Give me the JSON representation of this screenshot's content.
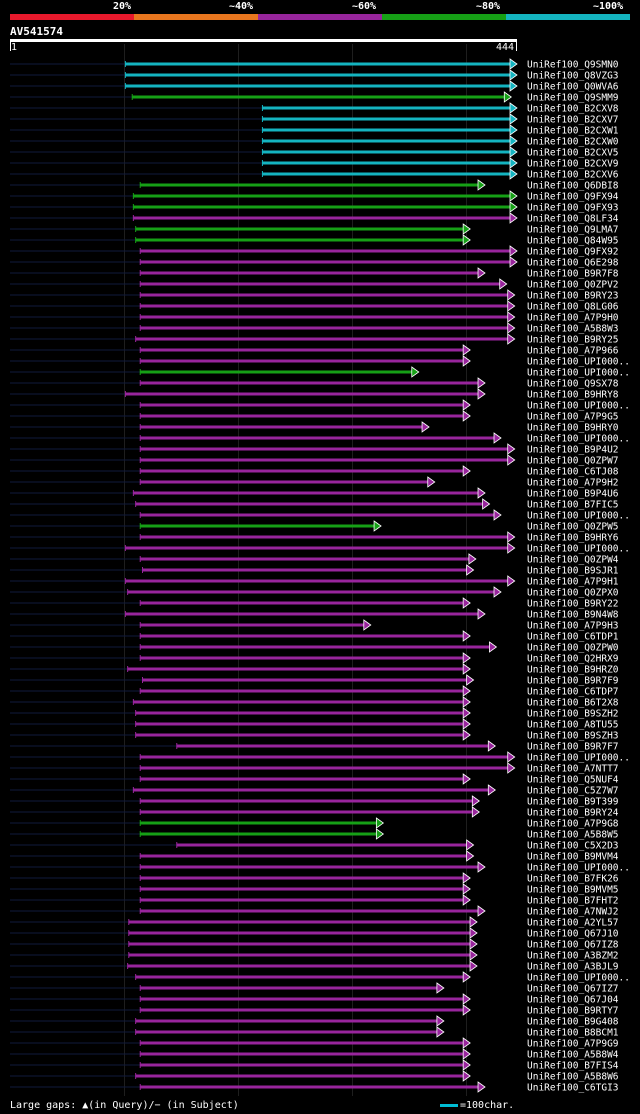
{
  "legend": {
    "labels": [
      "20%",
      "~40%",
      "~60%",
      "~80%",
      "~100%"
    ],
    "colors": [
      "#e8192c",
      "#e8761e",
      "#98259c",
      "#16a016",
      "#14b4c0"
    ]
  },
  "query": {
    "id": "AV541574",
    "start": "1",
    "end": "444",
    "length": 444
  },
  "footer": {
    "text": "Large gaps: ▲(in Query)/− (in Subject)",
    "scale_text": "=100char."
  },
  "colors": {
    "cyan": "#14b4c0",
    "green": "#16a016",
    "purple": "#98259c",
    "dark": "#101a3c"
  },
  "hits": [
    {
      "label": "UniRef100_Q9SMN0",
      "color": "cyan",
      "start": 102,
      "end": 444
    },
    {
      "label": "UniRef100_Q8VZG3",
      "color": "cyan",
      "start": 102,
      "end": 444
    },
    {
      "label": "UniRef100_Q0WVA6",
      "color": "cyan",
      "start": 102,
      "end": 444
    },
    {
      "label": "UniRef100_Q9SMM9",
      "color": "green",
      "start": 108,
      "end": 439
    },
    {
      "label": "UniRef100_B2CXV8",
      "color": "cyan",
      "start": 222,
      "end": 444
    },
    {
      "label": "UniRef100_B2CXV7",
      "color": "cyan",
      "start": 222,
      "end": 444
    },
    {
      "label": "UniRef100_B2CXW1",
      "color": "cyan",
      "start": 222,
      "end": 444
    },
    {
      "label": "UniRef100_B2CXW0",
      "color": "cyan",
      "start": 222,
      "end": 444
    },
    {
      "label": "UniRef100_B2CXV5",
      "color": "cyan",
      "start": 222,
      "end": 444
    },
    {
      "label": "UniRef100_B2CXV9",
      "color": "cyan",
      "start": 222,
      "end": 444
    },
    {
      "label": "UniRef100_B2CXV6",
      "color": "cyan",
      "start": 222,
      "end": 444
    },
    {
      "label": "UniRef100_Q6DBI8",
      "color": "green",
      "start": 115,
      "end": 416
    },
    {
      "label": "UniRef100_Q9FX94",
      "color": "green",
      "start": 109,
      "end": 444
    },
    {
      "label": "UniRef100_Q9FX93",
      "color": "green",
      "start": 109,
      "end": 444
    },
    {
      "label": "UniRef100_Q8LF34",
      "color": "purple",
      "start": 109,
      "end": 444
    },
    {
      "label": "UniRef100_Q9LMA7",
      "color": "green",
      "start": 111,
      "end": 403
    },
    {
      "label": "UniRef100_Q84W95",
      "color": "green",
      "start": 111,
      "end": 403
    },
    {
      "label": "UniRef100_Q9FX92",
      "color": "purple",
      "start": 115,
      "end": 444
    },
    {
      "label": "UniRef100_Q6E298",
      "color": "purple",
      "start": 115,
      "end": 444
    },
    {
      "label": "UniRef100_B9R7F8",
      "color": "purple",
      "start": 115,
      "end": 416
    },
    {
      "label": "UniRef100_Q0ZPV2",
      "color": "purple",
      "start": 115,
      "end": 435
    },
    {
      "label": "UniRef100_B9RY23",
      "color": "purple",
      "start": 115,
      "end": 442
    },
    {
      "label": "UniRef100_Q8LG06",
      "color": "purple",
      "start": 115,
      "end": 442
    },
    {
      "label": "UniRef100_A7P9H0",
      "color": "purple",
      "start": 115,
      "end": 442
    },
    {
      "label": "UniRef100_A5B8W3",
      "color": "purple",
      "start": 115,
      "end": 442
    },
    {
      "label": "UniRef100_B9RY25",
      "color": "purple",
      "start": 111,
      "end": 442
    },
    {
      "label": "UniRef100_A7P966",
      "color": "purple",
      "start": 115,
      "end": 403
    },
    {
      "label": "UniRef100_UPI000..",
      "color": "purple",
      "start": 115,
      "end": 403
    },
    {
      "label": "UniRef100_UPI000..",
      "color": "green",
      "start": 115,
      "end": 358
    },
    {
      "label": "UniRef100_Q9SX78",
      "color": "purple",
      "start": 115,
      "end": 416
    },
    {
      "label": "UniRef100_B9HRY8",
      "color": "purple",
      "start": 102,
      "end": 416
    },
    {
      "label": "UniRef100_UPI000..",
      "color": "purple",
      "start": 115,
      "end": 403
    },
    {
      "label": "UniRef100_A7P9G5",
      "color": "purple",
      "start": 115,
      "end": 403
    },
    {
      "label": "UniRef100_B9HRY0",
      "color": "purple",
      "start": 115,
      "end": 367
    },
    {
      "label": "UniRef100_UPI000..",
      "color": "purple",
      "start": 115,
      "end": 430
    },
    {
      "label": "UniRef100_B9P4U2",
      "color": "purple",
      "start": 115,
      "end": 442
    },
    {
      "label": "UniRef100_Q0ZPW7",
      "color": "purple",
      "start": 115,
      "end": 442
    },
    {
      "label": "UniRef100_C6TJ08",
      "color": "purple",
      "start": 115,
      "end": 403
    },
    {
      "label": "UniRef100_A7P9H2",
      "color": "purple",
      "start": 115,
      "end": 372
    },
    {
      "label": "UniRef100_B9P4U6",
      "color": "purple",
      "start": 109,
      "end": 416
    },
    {
      "label": "UniRef100_B7FIC5",
      "color": "purple",
      "start": 111,
      "end": 420
    },
    {
      "label": "UniRef100_UPI000..",
      "color": "purple",
      "start": 115,
      "end": 430
    },
    {
      "label": "UniRef100_Q0ZPW5",
      "color": "green",
      "start": 115,
      "end": 325
    },
    {
      "label": "UniRef100_B9HRY6",
      "color": "purple",
      "start": 115,
      "end": 442
    },
    {
      "label": "UniRef100_UPI000..",
      "color": "purple",
      "start": 102,
      "end": 442
    },
    {
      "label": "UniRef100_Q0ZPW4",
      "color": "purple",
      "start": 115,
      "end": 408
    },
    {
      "label": "UniRef100_B9SJR1",
      "color": "purple",
      "start": 117,
      "end": 406
    },
    {
      "label": "UniRef100_A7P9H1",
      "color": "purple",
      "start": 102,
      "end": 442
    },
    {
      "label": "UniRef100_Q0ZPX0",
      "color": "purple",
      "start": 104,
      "end": 430
    },
    {
      "label": "UniRef100_B9RY22",
      "color": "purple",
      "start": 115,
      "end": 403
    },
    {
      "label": "UniRef100_B9N4W8",
      "color": "purple",
      "start": 102,
      "end": 416
    },
    {
      "label": "UniRef100_A7P9H3",
      "color": "purple",
      "start": 115,
      "end": 316
    },
    {
      "label": "UniRef100_C6TDP1",
      "color": "purple",
      "start": 115,
      "end": 403
    },
    {
      "label": "UniRef100_Q0ZPW0",
      "color": "purple",
      "start": 115,
      "end": 426
    },
    {
      "label": "UniRef100_Q2HRX9",
      "color": "purple",
      "start": 115,
      "end": 403
    },
    {
      "label": "UniRef100_B9HRZ0",
      "color": "purple",
      "start": 104,
      "end": 403
    },
    {
      "label": "UniRef100_B9R7F9",
      "color": "purple",
      "start": 117,
      "end": 406
    },
    {
      "label": "UniRef100_C6TDP7",
      "color": "purple",
      "start": 115,
      "end": 403
    },
    {
      "label": "UniRef100_B6T2X8",
      "color": "purple",
      "start": 109,
      "end": 403
    },
    {
      "label": "UniRef100_B9SZH2",
      "color": "purple",
      "start": 111,
      "end": 403
    },
    {
      "label": "UniRef100_A8TU55",
      "color": "purple",
      "start": 111,
      "end": 403
    },
    {
      "label": "UniRef100_B9SZH3",
      "color": "purple",
      "start": 111,
      "end": 403
    },
    {
      "label": "UniRef100_B9R7F7",
      "color": "purple",
      "start": 147,
      "end": 425
    },
    {
      "label": "UniRef100_UPI000..",
      "color": "purple",
      "start": 115,
      "end": 442
    },
    {
      "label": "UniRef100_A7NTT7",
      "color": "purple",
      "start": 115,
      "end": 442
    },
    {
      "label": "UniRef100_Q5NUF4",
      "color": "purple",
      "start": 115,
      "end": 403
    },
    {
      "label": "UniRef100_C5Z7W7",
      "color": "purple",
      "start": 109,
      "end": 425
    },
    {
      "label": "UniRef100_B9T399",
      "color": "purple",
      "start": 115,
      "end": 411
    },
    {
      "label": "UniRef100_B9RY24",
      "color": "purple",
      "start": 115,
      "end": 411
    },
    {
      "label": "UniRef100_A7P9G8",
      "color": "green",
      "start": 115,
      "end": 327
    },
    {
      "label": "UniRef100_A5B8W5",
      "color": "green",
      "start": 115,
      "end": 327
    },
    {
      "label": "UniRef100_C5X2D3",
      "color": "purple",
      "start": 147,
      "end": 406
    },
    {
      "label": "UniRef100_B9MVM4",
      "color": "purple",
      "start": 115,
      "end": 406
    },
    {
      "label": "UniRef100_UPI000..",
      "color": "purple",
      "start": 115,
      "end": 416
    },
    {
      "label": "UniRef100_B7FK26",
      "color": "purple",
      "start": 115,
      "end": 403
    },
    {
      "label": "UniRef100_B9MVM5",
      "color": "purple",
      "start": 115,
      "end": 403
    },
    {
      "label": "UniRef100_B7FHT2",
      "color": "purple",
      "start": 115,
      "end": 403
    },
    {
      "label": "UniRef100_A7NWJ2",
      "color": "purple",
      "start": 115,
      "end": 416
    },
    {
      "label": "UniRef100_A2YL57",
      "color": "purple",
      "start": 105,
      "end": 409
    },
    {
      "label": "UniRef100_Q67J10",
      "color": "purple",
      "start": 105,
      "end": 409
    },
    {
      "label": "UniRef100_Q67IZ8",
      "color": "purple",
      "start": 105,
      "end": 409
    },
    {
      "label": "UniRef100_A3BZM2",
      "color": "purple",
      "start": 105,
      "end": 409
    },
    {
      "label": "UniRef100_A3BJL9",
      "color": "purple",
      "start": 104,
      "end": 409
    },
    {
      "label": "UniRef100_UPI000..",
      "color": "purple",
      "start": 111,
      "end": 403
    },
    {
      "label": "UniRef100_Q67IZ7",
      "color": "purple",
      "start": 115,
      "end": 380
    },
    {
      "label": "UniRef100_Q67J04",
      "color": "purple",
      "start": 115,
      "end": 403
    },
    {
      "label": "UniRef100_B9RTY7",
      "color": "purple",
      "start": 115,
      "end": 403
    },
    {
      "label": "UniRef100_B9G408",
      "color": "purple",
      "start": 111,
      "end": 380
    },
    {
      "label": "UniRef100_B8BCM1",
      "color": "purple",
      "start": 111,
      "end": 380
    },
    {
      "label": "UniRef100_A7P9G9",
      "color": "purple",
      "start": 115,
      "end": 403
    },
    {
      "label": "UniRef100_A5B8W4",
      "color": "purple",
      "start": 115,
      "end": 403
    },
    {
      "label": "UniRef100_B7FIS4",
      "color": "purple",
      "start": 115,
      "end": 403
    },
    {
      "label": "UniRef100_A5B8W6",
      "color": "purple",
      "start": 111,
      "end": 403
    },
    {
      "label": "UniRef100_C6TGI3",
      "color": "purple",
      "start": 115,
      "end": 416
    }
  ]
}
